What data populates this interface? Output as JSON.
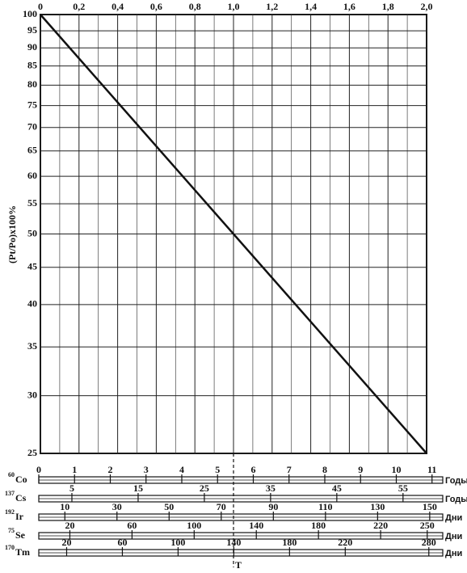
{
  "chart_data": {
    "type": "line",
    "y_label": "(Pt/Po)x100%",
    "log_y": true,
    "grid": true,
    "color": "#111111",
    "x": [
      0,
      2.0
    ],
    "values": [
      100,
      25
    ],
    "xlim": [
      0,
      2.0
    ],
    "ylim": [
      25,
      100
    ],
    "xticks": [
      {
        "value": 0,
        "label": "0"
      },
      {
        "value": 0.2,
        "label": "0,2"
      },
      {
        "value": 0.4,
        "label": "0,4"
      },
      {
        "value": 0.6,
        "label": "0,6"
      },
      {
        "value": 0.8,
        "label": "0,8"
      },
      {
        "value": 1.0,
        "label": "1,0"
      },
      {
        "value": 1.2,
        "label": "1,2"
      },
      {
        "value": 1.4,
        "label": "1,4"
      },
      {
        "value": 1.6,
        "label": "1,6"
      },
      {
        "value": 1.8,
        "label": "1,8"
      },
      {
        "value": 2.0,
        "label": "2,0"
      }
    ],
    "x_minor_ticks": [
      0.1,
      0.3,
      0.5,
      0.7,
      0.9,
      1.1,
      1.3,
      1.5,
      1.7,
      1.9
    ],
    "yticks": [
      25,
      30,
      35,
      40,
      45,
      50,
      55,
      60,
      65,
      70,
      75,
      80,
      85,
      90,
      95,
      100
    ],
    "marker": {
      "label": "T",
      "x": 1.0
    },
    "scales": [
      {
        "mass": "60",
        "name": "Co",
        "unit": "Годы",
        "xlim": [
          0,
          11.3
        ],
        "xticks": [
          0,
          1,
          2,
          3,
          4,
          5,
          6,
          7,
          8,
          9,
          10,
          11
        ]
      },
      {
        "mass": "137",
        "name": "Cs",
        "unit": "Годы",
        "xlim": [
          0,
          61
        ],
        "xticks": [
          5,
          15,
          25,
          35,
          45,
          55
        ]
      },
      {
        "mass": "192",
        "name": "Ir",
        "unit": "Дни",
        "xlim": [
          0,
          155
        ],
        "xticks": [
          10,
          30,
          50,
          70,
          90,
          110,
          130,
          150
        ]
      },
      {
        "mass": "75",
        "name": "Se",
        "unit": "Дни",
        "xlim": [
          0,
          260
        ],
        "xticks": [
          20,
          60,
          100,
          140,
          180,
          220,
          250
        ]
      },
      {
        "mass": "170",
        "name": "Tm",
        "unit": "Дни",
        "xlim": [
          0,
          290
        ],
        "xticks": [
          20,
          60,
          100,
          140,
          180,
          220,
          280
        ]
      }
    ]
  }
}
